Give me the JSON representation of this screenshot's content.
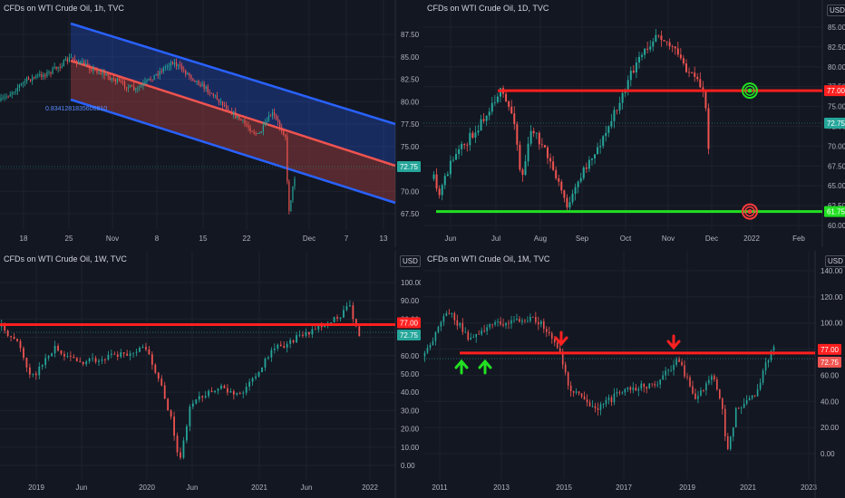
{
  "panels": [
    {
      "id": "p1",
      "title": "CFDs on WTI Crude Oil, 1h, TVC",
      "currency": "",
      "yticks": [
        "87.50",
        "85.00",
        "82.50",
        "80.00",
        "77.50",
        "75.00",
        "72.50",
        "70.00",
        "67.50"
      ],
      "yvals": [
        87.5,
        85,
        82.5,
        80,
        77.5,
        75,
        72.5,
        70,
        67.5
      ],
      "xticks": [
        "18",
        "25",
        "Nov",
        "8",
        "15",
        "22",
        "Dec",
        "7",
        "13"
      ],
      "last_price": "72.75",
      "annotation": "0.8341281835606810"
    },
    {
      "id": "p2",
      "title": "CFDs on WTI Crude Oil, 1D, TVC",
      "currency": "USD",
      "yticks": [
        "85.00",
        "82.50",
        "80.00",
        "77.50",
        "75.00",
        "72.50",
        "70.00",
        "67.50",
        "65.00",
        "62.50",
        "60.00"
      ],
      "yvals": [
        85,
        82.5,
        80,
        77.5,
        75,
        72.5,
        70,
        67.5,
        65,
        62.5,
        60
      ],
      "xticks": [
        "Jun",
        "Jul",
        "Aug",
        "Sep",
        "Oct",
        "Nov",
        "Dec",
        "2022",
        "Feb"
      ],
      "last_price": "72.75",
      "level_high": "77.00",
      "level_low": "61.75"
    },
    {
      "id": "p3",
      "title": "CFDs on WTI Crude Oil, 1W, TVC",
      "currency": "USD",
      "yticks": [
        "100.00",
        "90.00",
        "80.00",
        "70.00",
        "60.00",
        "50.00",
        "40.00",
        "30.00",
        "20.00",
        "10.00",
        "0.00"
      ],
      "yvals": [
        100,
        90,
        80,
        70,
        60,
        50,
        40,
        30,
        20,
        10,
        0
      ],
      "xticks": [
        "2019",
        "Jun",
        "2020",
        "Jun",
        "2021",
        "Jun",
        "2022"
      ],
      "last_price": "72.75",
      "level": "77.00"
    },
    {
      "id": "p4",
      "title": "CFDs on WTI Crude Oil, 1M, TVC",
      "currency": "USD",
      "yticks": [
        "140.00",
        "120.00",
        "100.00",
        "80.00",
        "60.00",
        "40.00",
        "20.00",
        "0.00"
      ],
      "yvals": [
        140,
        120,
        100,
        80,
        60,
        40,
        20,
        0
      ],
      "xticks": [
        "2011",
        "2013",
        "2015",
        "2017",
        "2019",
        "2021",
        "2023"
      ],
      "last_price": "72.75",
      "level": "77.00"
    }
  ],
  "colors": {
    "background": "#131722",
    "up": "#26a69a",
    "down": "#ef5350",
    "level_red": "#ff1f1f",
    "level_green": "#22e022",
    "channel_blue": "#2962ff"
  }
}
